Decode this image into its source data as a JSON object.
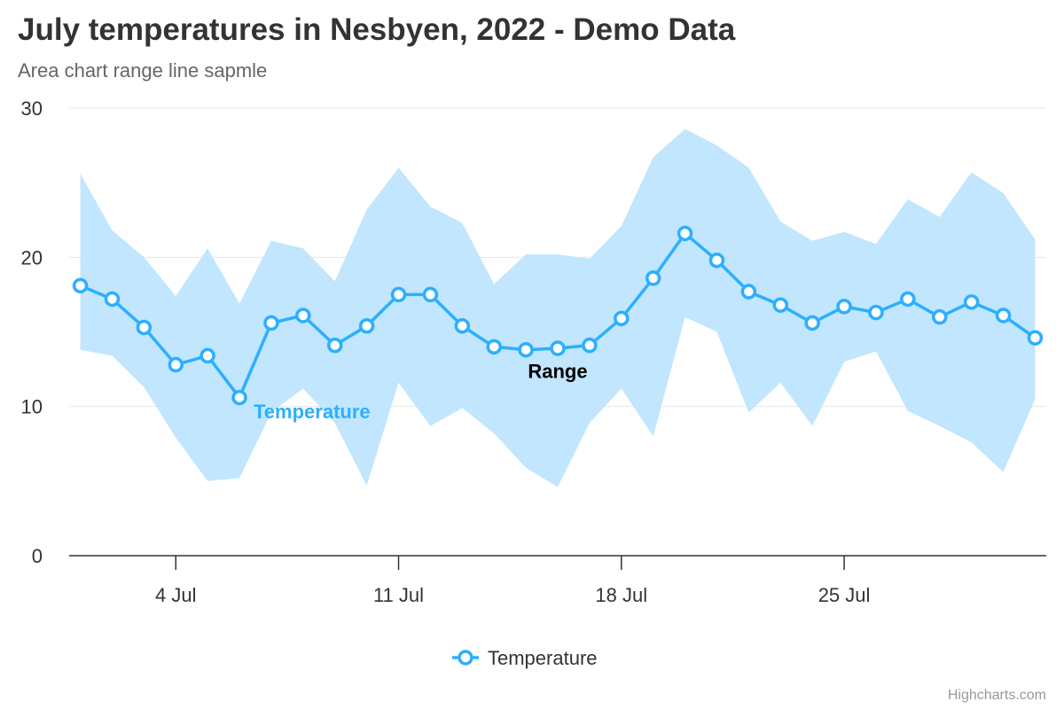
{
  "header": {
    "title": "July temperatures in Nesbyen, 2022 - Demo Data",
    "subtitle": "Area chart range line sapmle"
  },
  "credits": "Highcharts.com",
  "colors": {
    "line": "#2caffe",
    "range_fill": "#c1e6fd",
    "grid": "#e6e6e6",
    "axis": "#333333",
    "text": "#333333"
  },
  "chart_data": {
    "type": "area",
    "title": "July temperatures in Nesbyen, 2022 - Demo Data",
    "subtitle": "Area chart range line sapmle",
    "xlabel": "",
    "ylabel": "",
    "ylim": [
      0,
      30
    ],
    "yticks": [
      0,
      10,
      20,
      30
    ],
    "xlim": [
      "2022-07-01",
      "2022-07-31"
    ],
    "xticks": [
      {
        "date": "2022-07-04",
        "label": "4 Jul"
      },
      {
        "date": "2022-07-11",
        "label": "11 Jul"
      },
      {
        "date": "2022-07-18",
        "label": "18 Jul"
      },
      {
        "date": "2022-07-25",
        "label": "25 Jul"
      }
    ],
    "grid": true,
    "legend": {
      "position": "bottom-center",
      "items": [
        "Temperature"
      ]
    },
    "x": [
      "2022-07-01",
      "2022-07-02",
      "2022-07-03",
      "2022-07-04",
      "2022-07-05",
      "2022-07-06",
      "2022-07-07",
      "2022-07-08",
      "2022-07-09",
      "2022-07-10",
      "2022-07-11",
      "2022-07-12",
      "2022-07-13",
      "2022-07-14",
      "2022-07-15",
      "2022-07-16",
      "2022-07-17",
      "2022-07-18",
      "2022-07-19",
      "2022-07-20",
      "2022-07-21",
      "2022-07-22",
      "2022-07-23",
      "2022-07-24",
      "2022-07-25",
      "2022-07-26",
      "2022-07-27",
      "2022-07-28",
      "2022-07-29",
      "2022-07-30",
      "2022-07-31"
    ],
    "series": [
      {
        "name": "Temperature",
        "type": "line",
        "values": [
          18.1,
          17.2,
          15.3,
          12.8,
          13.4,
          10.6,
          15.6,
          16.1,
          14.1,
          15.4,
          17.5,
          17.5,
          15.4,
          14.0,
          13.8,
          13.9,
          14.1,
          15.9,
          18.6,
          21.6,
          19.8,
          17.7,
          16.8,
          15.6,
          16.7,
          16.3,
          17.2,
          16.0,
          17.0,
          16.1,
          14.6
        ]
      },
      {
        "name": "Range",
        "type": "arearange",
        "low": [
          13.8,
          13.4,
          11.3,
          7.9,
          5.0,
          5.2,
          9.6,
          11.2,
          8.9,
          4.7,
          11.6,
          8.7,
          9.9,
          8.2,
          5.9,
          4.6,
          8.9,
          11.2,
          8.0,
          16.0,
          15.0,
          9.6,
          11.6,
          8.7,
          13.0,
          13.7,
          9.7,
          8.7,
          7.6,
          5.6,
          10.5
        ],
        "high": [
          25.6,
          21.8,
          20.0,
          17.4,
          20.6,
          16.9,
          21.1,
          20.6,
          18.4,
          23.2,
          26.0,
          23.4,
          22.3,
          18.2,
          20.2,
          20.2,
          19.9,
          22.1,
          26.7,
          28.6,
          27.5,
          26.0,
          22.4,
          21.1,
          21.7,
          20.9,
          23.9,
          22.7,
          25.7,
          24.3,
          21.2
        ]
      }
    ],
    "annotations": [
      {
        "text": "Temperature",
        "series": "Temperature"
      },
      {
        "text": "Range",
        "series": "Range"
      }
    ]
  }
}
